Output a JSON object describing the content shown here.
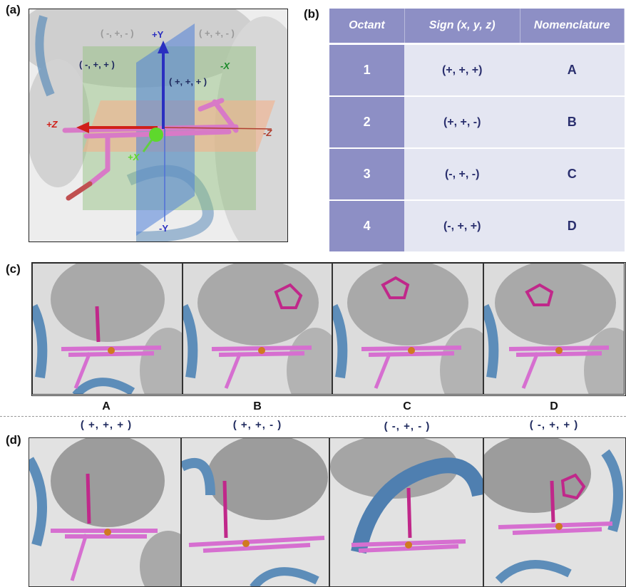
{
  "panels": {
    "a": "(a)",
    "b": "(b)",
    "c": "(c)",
    "d": "(d)"
  },
  "panel_a": {
    "octant_labels": {
      "top_left_grey": "( -, +, - )",
      "top_right_grey": "( +, +, - )",
      "left_navy": "( -, +, + )",
      "center_navy": "( +, +, + )"
    },
    "axes": {
      "plus_y": "+Y",
      "minus_y": "-Y",
      "plus_z": "+Z",
      "minus_z": "-Z",
      "plus_x": "+X",
      "minus_x": "-X"
    }
  },
  "table": {
    "headers": [
      "Octant",
      "Sign (x, y, z)",
      "Nomenclature"
    ],
    "rows": [
      {
        "octant": "1",
        "sign": "(+, +, +)",
        "nomenclature": "A"
      },
      {
        "octant": "2",
        "sign": "(+, +, -)",
        "nomenclature": "B"
      },
      {
        "octant": "3",
        "sign": "(-, +, -)",
        "nomenclature": "C"
      },
      {
        "octant": "4",
        "sign": "(-, +, +)",
        "nomenclature": "D"
      }
    ]
  },
  "captions": [
    {
      "letter": "A",
      "sign": "( +, +, + )"
    },
    {
      "letter": "B",
      "sign": "( +, +, - )"
    },
    {
      "letter": "C",
      "sign": "( -, +, - )"
    },
    {
      "letter": "D",
      "sign": "( -, +, + )"
    }
  ],
  "colors": {
    "header_purple": "#8d8fc5",
    "cell_light": "#e4e6f2",
    "text_navy": "#2a2f6e",
    "heme_magenta": "#d070c8",
    "protein_blue": "#4f7fb0",
    "surface_grey": "#c9c9c9",
    "axis_red": "#d0201a",
    "axis_blue": "#2a2fc0",
    "axis_green": "#3ab03a"
  }
}
